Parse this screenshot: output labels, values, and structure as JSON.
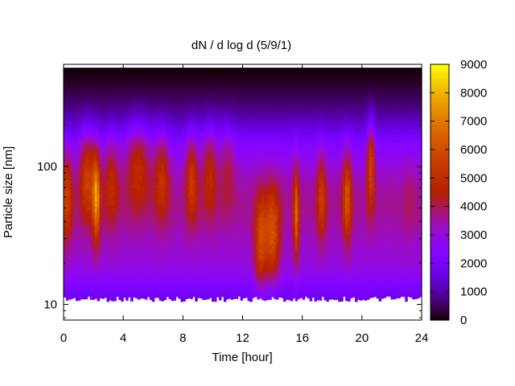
{
  "chart_data": {
    "type": "heatmap",
    "title": "dN / d log d (5/9/1)",
    "xlabel": "Time [hour]",
    "ylabel": "Particle size [nm]",
    "xlim": [
      0,
      24
    ],
    "ylim": [
      7.7,
      550
    ],
    "yscale": "log",
    "x_ticks": [
      0,
      4,
      8,
      12,
      16,
      20,
      24
    ],
    "y_ticks": [
      10,
      100
    ],
    "colorbar": {
      "range": [
        0,
        9000
      ],
      "ticks": [
        0,
        1000,
        2000,
        3000,
        4000,
        5000,
        6000,
        7000,
        8000,
        9000
      ],
      "colormap": "gnuplot-pm3d-black-blue-violet-red-orange-yellow"
    },
    "size_range_nm": [
      11.5,
      520
    ],
    "grid": false,
    "colors": {
      "background": "#ffffff",
      "axes": "#000000",
      "low": "#000000",
      "mid": "#8a1aff",
      "high": "#ffff00"
    },
    "events": [
      {
        "time": 0.2,
        "center_nm": 60,
        "width": 0.4,
        "peak": 5600
      },
      {
        "time": 1.6,
        "center_nm": 90,
        "width": 0.5,
        "peak": 5800
      },
      {
        "time": 2.2,
        "center_nm": 60,
        "width": 0.25,
        "peak": 7200
      },
      {
        "time": 3.2,
        "center_nm": 80,
        "width": 0.5,
        "peak": 5000
      },
      {
        "time": 5.0,
        "center_nm": 110,
        "width": 0.8,
        "peak": 5300
      },
      {
        "time": 6.6,
        "center_nm": 90,
        "width": 0.5,
        "peak": 5300
      },
      {
        "time": 8.6,
        "center_nm": 85,
        "width": 0.4,
        "peak": 5500
      },
      {
        "time": 9.8,
        "center_nm": 100,
        "width": 0.5,
        "peak": 5100
      },
      {
        "time": 11.0,
        "center_nm": 110,
        "width": 0.5,
        "peak": 4500
      },
      {
        "time": 13.2,
        "center_nm": 28,
        "width": 0.4,
        "peak": 6000
      },
      {
        "time": 14.0,
        "center_nm": 32,
        "width": 0.5,
        "peak": 6200
      },
      {
        "time": 15.6,
        "center_nm": 45,
        "width": 0.18,
        "peak": 6600
      },
      {
        "time": 17.3,
        "center_nm": 60,
        "width": 0.3,
        "peak": 5400
      },
      {
        "time": 19.0,
        "center_nm": 60,
        "width": 0.3,
        "peak": 6000
      },
      {
        "time": 20.6,
        "center_nm": 110,
        "width": 0.25,
        "peak": 6300
      },
      {
        "time": 23.2,
        "center_nm": 60,
        "width": 0.4,
        "peak": 3800
      }
    ]
  }
}
